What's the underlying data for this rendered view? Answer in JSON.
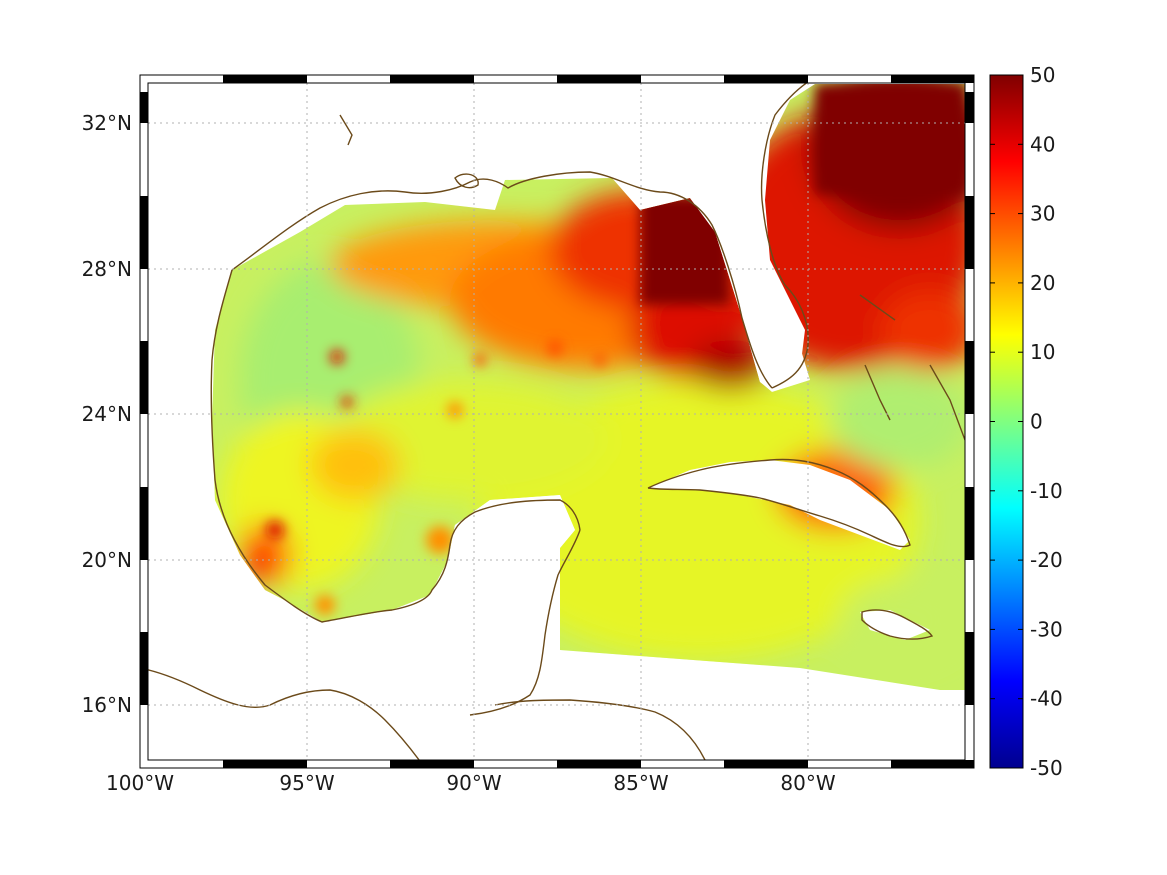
{
  "map": {
    "lon_range": [
      -100,
      -75
    ],
    "lat_range": [
      14.2,
      33
    ],
    "lon_ticks": [
      {
        "value": -100,
        "label": "100°W"
      },
      {
        "value": -95,
        "label": "95°W"
      },
      {
        "value": -90,
        "label": "90°W"
      },
      {
        "value": -85,
        "label": "85°W"
      },
      {
        "value": -80,
        "label": "80°W"
      }
    ],
    "lat_ticks": [
      {
        "value": 16,
        "label": "16°N"
      },
      {
        "value": 20,
        "label": "20°N"
      },
      {
        "value": 24,
        "label": "24°N"
      },
      {
        "value": 28,
        "label": "28°N"
      },
      {
        "value": 32,
        "label": "32°N"
      }
    ],
    "grid": true,
    "coastline_color": "#6b4a1a"
  },
  "colorbar": {
    "min": -50,
    "max": 50,
    "ticks": [
      "50",
      "40",
      "30",
      "20",
      "10",
      "0",
      "-10",
      "-20",
      "-30",
      "-40",
      "-50"
    ],
    "colormap": "jet"
  }
}
